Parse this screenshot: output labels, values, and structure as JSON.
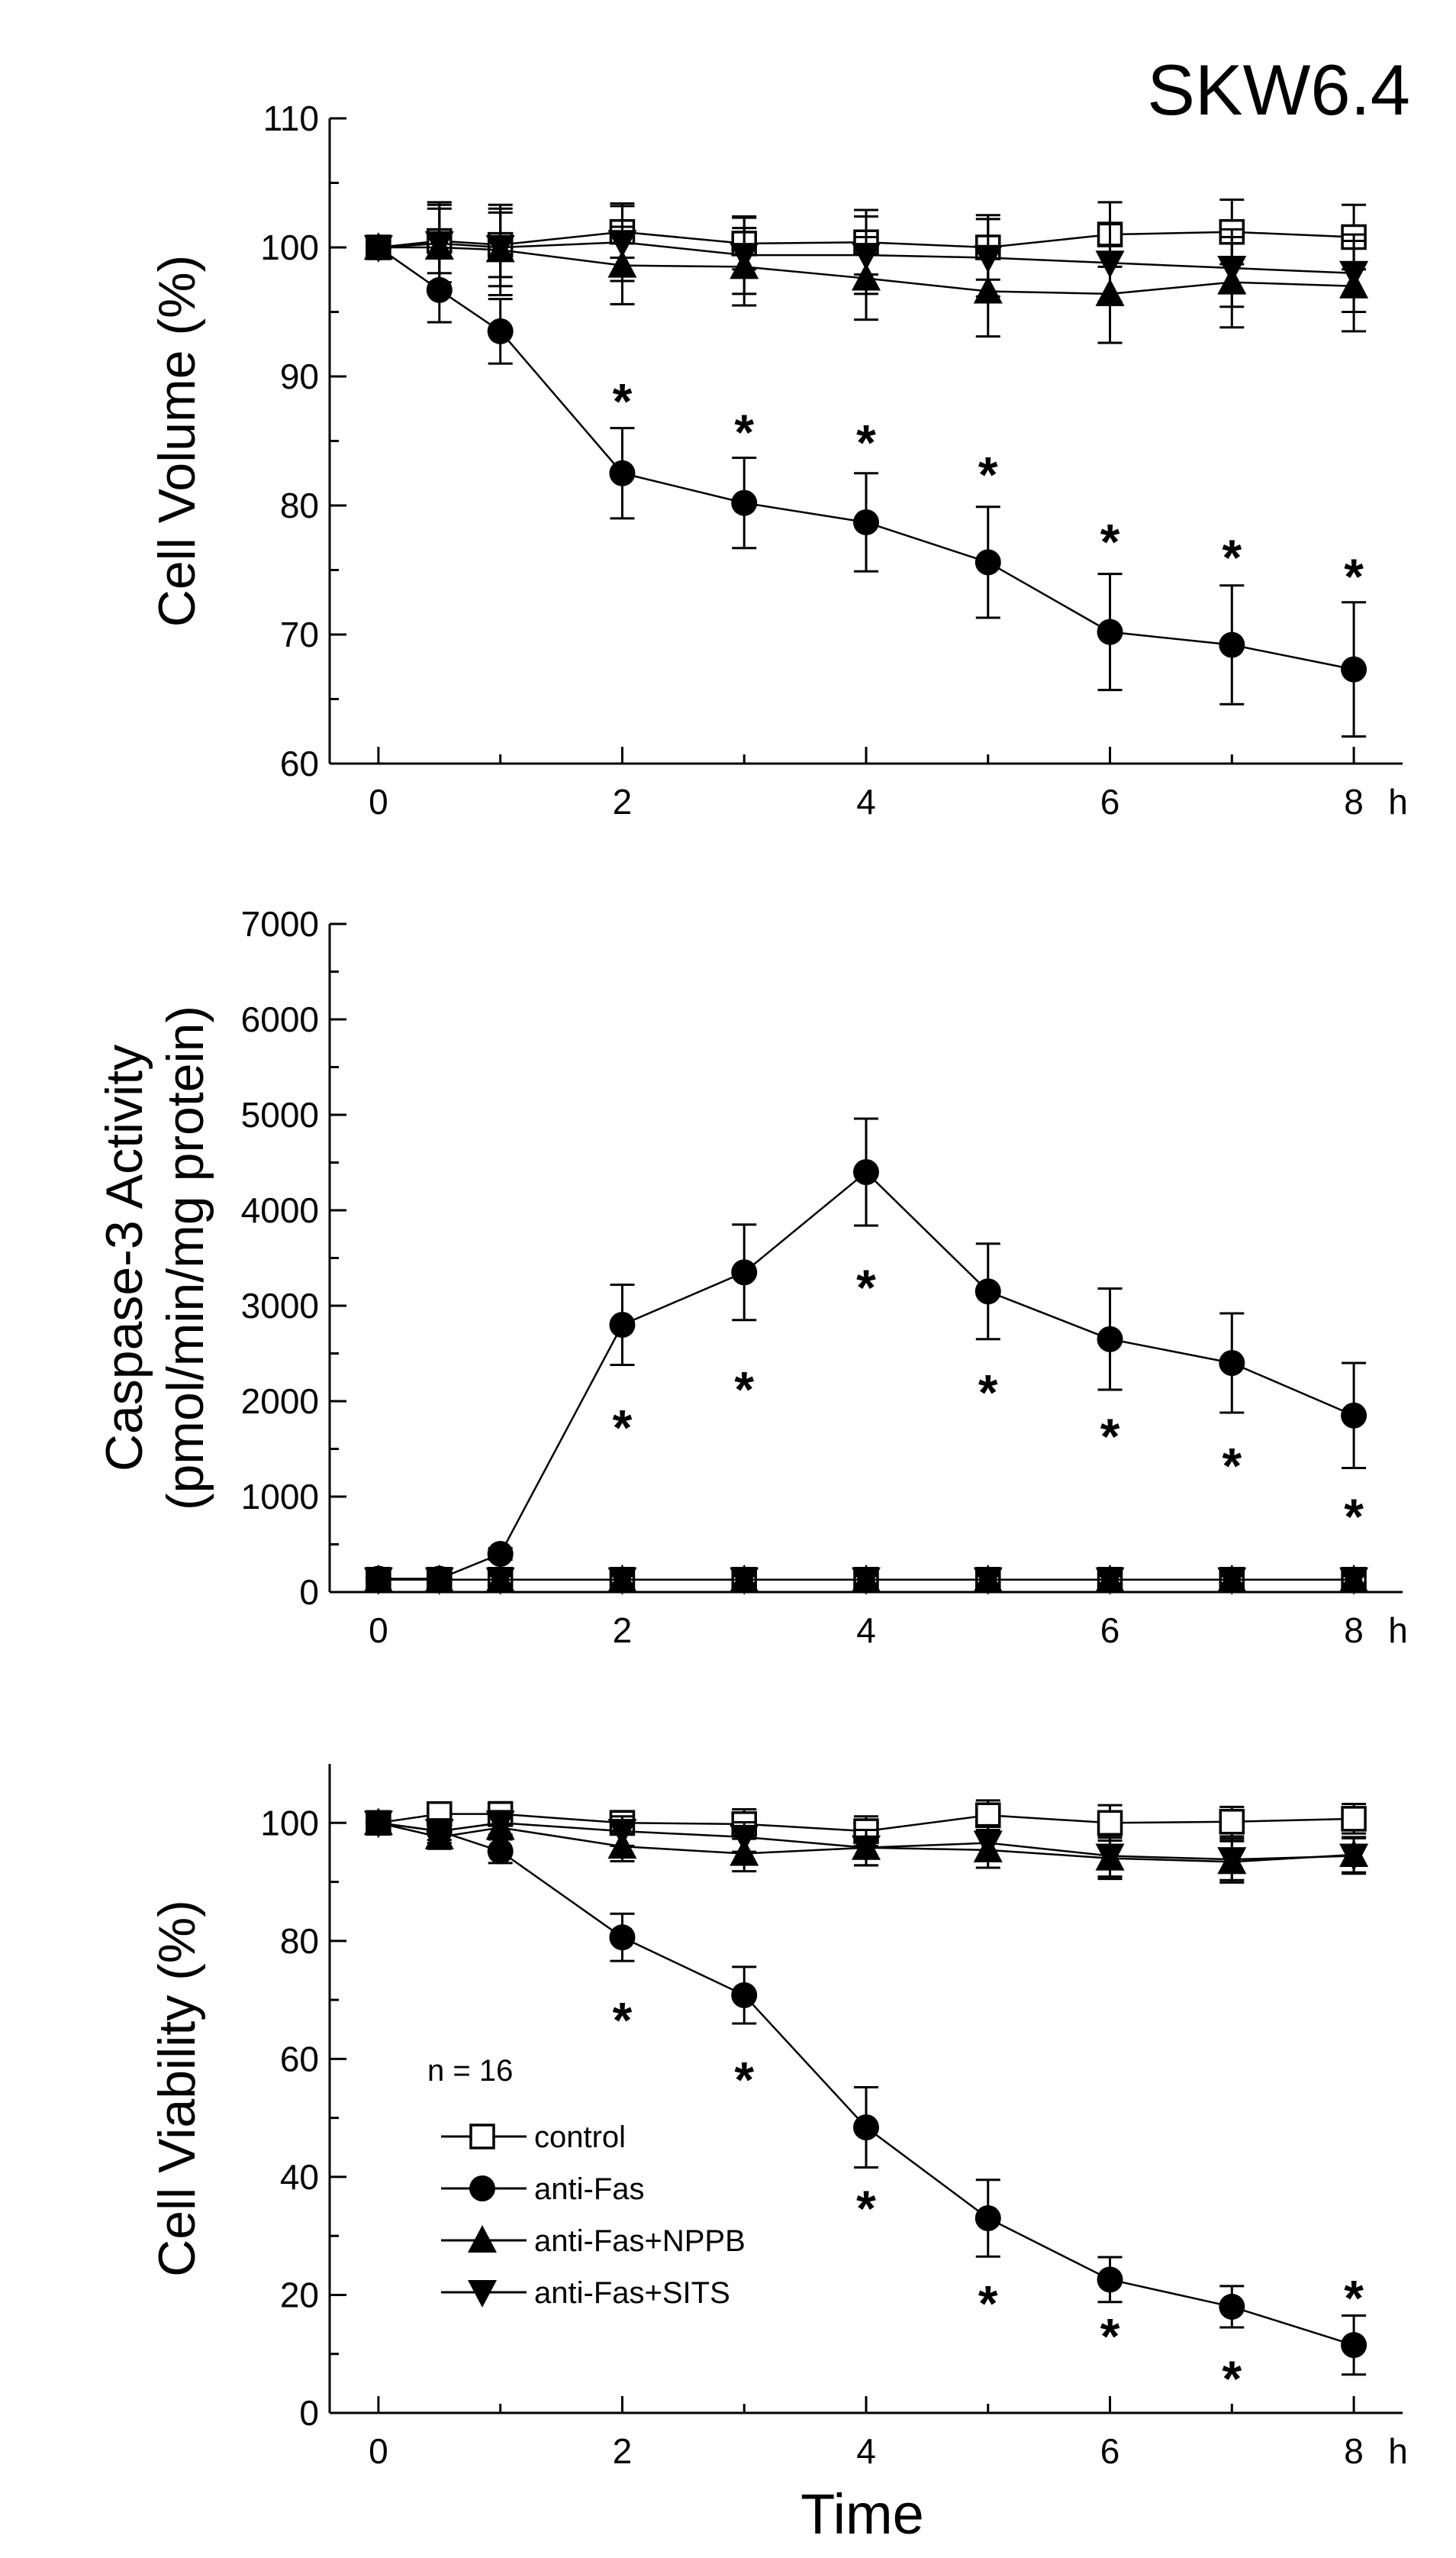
{
  "figure": {
    "title": "SKW6.4",
    "xlabel": "Time",
    "n_label": "n = 16"
  },
  "legend": [
    {
      "name": "control",
      "marker": "square-open"
    },
    {
      "name": "anti-Fas",
      "marker": "circle-filled"
    },
    {
      "name": "anti-Fas+NPPB",
      "marker": "triangle-up-filled"
    },
    {
      "name": "anti-Fas+SITS",
      "marker": "triangle-down-filled"
    }
  ],
  "chart_data": [
    {
      "type": "line",
      "id": "volume",
      "ylabel": "Cell Volume (%)",
      "ylabel_lines": [
        "Cell Volume (%)"
      ],
      "x": [
        0,
        0.5,
        1,
        2,
        3,
        4,
        5,
        6,
        7,
        8
      ],
      "xlim": [
        -0.4,
        8.4
      ],
      "xticks": [
        0,
        2,
        4,
        6,
        8
      ],
      "x_unit_label": "h",
      "ylim": [
        60,
        110
      ],
      "yticks": [
        60,
        70,
        80,
        90,
        100,
        110
      ],
      "series": [
        {
          "name": "control",
          "marker": "square-open",
          "values": [
            100,
            100.5,
            100.2,
            101.2,
            100.3,
            100.4,
            100.0,
            101.0,
            101.2,
            100.8
          ],
          "errors": [
            0.5,
            2.5,
            2.5,
            2.0,
            2.0,
            2.5,
            2.5,
            2.5,
            2.5,
            2.5
          ]
        },
        {
          "name": "anti-Fas",
          "marker": "circle-filled",
          "values": [
            100,
            96.7,
            93.5,
            82.5,
            80.2,
            78.7,
            75.6,
            70.2,
            69.2,
            67.3
          ],
          "errors": [
            0.5,
            2.5,
            2.5,
            3.5,
            3.5,
            3.8,
            4.3,
            4.5,
            4.6,
            5.2
          ]
        },
        {
          "name": "anti-Fas+NPPB",
          "marker": "triangle-up-filled",
          "values": [
            100,
            100.0,
            99.8,
            98.6,
            98.5,
            97.6,
            96.6,
            96.4,
            97.3,
            97.0
          ],
          "errors": [
            0.5,
            3.5,
            3.5,
            3.0,
            3.0,
            3.2,
            3.5,
            3.8,
            3.5,
            3.5
          ]
        },
        {
          "name": "anti-Fas+SITS",
          "marker": "triangle-down-filled",
          "values": [
            100,
            100.3,
            100.0,
            100.4,
            99.4,
            99.4,
            99.2,
            98.8,
            98.4,
            98.0
          ],
          "errors": [
            0.5,
            3.0,
            3.0,
            3.0,
            3.0,
            3.0,
            3.0,
            3.0,
            3.0,
            3.0
          ]
        }
      ],
      "significance": [
        {
          "x": 2,
          "y": 88.5
        },
        {
          "x": 3,
          "y": 86.1
        },
        {
          "x": 4,
          "y": 85.3
        },
        {
          "x": 5,
          "y": 82.8
        },
        {
          "x": 6,
          "y": 77.6
        },
        {
          "x": 7,
          "y": 76.4
        },
        {
          "x": 8,
          "y": 74.9
        }
      ]
    },
    {
      "type": "line",
      "id": "caspase",
      "ylabel": "Caspase-3 Activity (pmol/min/mg protein)",
      "ylabel_lines": [
        "Caspase-3 Activity",
        "(pmol/min/mg protein)"
      ],
      "x": [
        0,
        0.5,
        1,
        2,
        3,
        4,
        5,
        6,
        7,
        8
      ],
      "xlim": [
        -0.4,
        8.4
      ],
      "xticks": [
        0,
        2,
        4,
        6,
        8
      ],
      "x_unit_label": "h",
      "ylim": [
        0,
        7000
      ],
      "yticks": [
        0,
        1000,
        2000,
        3000,
        4000,
        5000,
        6000,
        7000
      ],
      "series": [
        {
          "name": "control",
          "marker": "square-open",
          "values": [
            130,
            130,
            130,
            130,
            130,
            130,
            130,
            130,
            130,
            130
          ],
          "errors": [
            40,
            40,
            40,
            40,
            40,
            40,
            40,
            40,
            40,
            40
          ]
        },
        {
          "name": "anti-Fas",
          "marker": "circle-filled",
          "values": [
            140,
            140,
            400,
            2800,
            3350,
            4400,
            3150,
            2650,
            2400,
            1850
          ],
          "errors": [
            30,
            30,
            60,
            420,
            500,
            560,
            500,
            530,
            520,
            550
          ]
        },
        {
          "name": "anti-Fas+NPPB",
          "marker": "triangle-up-filled",
          "values": [
            130,
            130,
            130,
            130,
            130,
            130,
            130,
            130,
            130,
            130
          ],
          "errors": [
            40,
            40,
            40,
            40,
            40,
            40,
            40,
            40,
            40,
            40
          ]
        },
        {
          "name": "anti-Fas+SITS",
          "marker": "triangle-down-filled",
          "values": [
            130,
            130,
            130,
            130,
            130,
            130,
            130,
            130,
            130,
            130
          ],
          "errors": [
            40,
            40,
            40,
            40,
            40,
            40,
            40,
            40,
            40,
            40
          ]
        }
      ],
      "significance": [
        {
          "x": 2,
          "y": 1780
        },
        {
          "x": 3,
          "y": 2180
        },
        {
          "x": 4,
          "y": 3250
        },
        {
          "x": 5,
          "y": 2150
        },
        {
          "x": 6,
          "y": 1690
        },
        {
          "x": 7,
          "y": 1380
        },
        {
          "x": 8,
          "y": 850
        }
      ]
    },
    {
      "type": "line",
      "id": "viability",
      "ylabel": "Cell Viability (%)",
      "ylabel_lines": [
        "Cell Viability (%)"
      ],
      "x": [
        0,
        0.5,
        1,
        2,
        3,
        4,
        5,
        6,
        7,
        8
      ],
      "xlim": [
        -0.4,
        8.4
      ],
      "xticks": [
        0,
        2,
        4,
        6,
        8
      ],
      "x_unit_label": "h",
      "ylim": [
        0,
        110
      ],
      "yticks": [
        0,
        20,
        40,
        60,
        80,
        100
      ],
      "series": [
        {
          "name": "control",
          "marker": "square-open",
          "values": [
            100,
            101.5,
            101.5,
            100.0,
            99.8,
            98.6,
            101.3,
            100.0,
            100.2,
            100.7
          ],
          "errors": [
            1.0,
            1.5,
            2.0,
            2.0,
            2.5,
            2.5,
            2.5,
            3.0,
            2.5,
            2.5
          ]
        },
        {
          "name": "anti-Fas",
          "marker": "circle-filled",
          "values": [
            100,
            98.6,
            95.2,
            80.6,
            70.8,
            48.4,
            33.0,
            22.6,
            18.0,
            11.5
          ],
          "errors": [
            1.0,
            1.5,
            2.0,
            4.0,
            4.8,
            6.8,
            6.5,
            3.8,
            3.5,
            5.0
          ]
        },
        {
          "name": "anti-Fas+NPPB",
          "marker": "triangle-up-filled",
          "values": [
            100,
            97.6,
            99.2,
            96.0,
            94.8,
            95.8,
            95.4,
            94.0,
            93.4,
            94.6
          ],
          "errors": [
            1.0,
            2.0,
            2.0,
            2.5,
            3.0,
            3.0,
            3.0,
            3.5,
            3.5,
            3.0
          ]
        },
        {
          "name": "anti-Fas+SITS",
          "marker": "triangle-down-filled",
          "values": [
            100,
            98.6,
            100.0,
            98.6,
            97.6,
            95.8,
            96.6,
            94.4,
            93.8,
            94.4
          ],
          "errors": [
            1.0,
            2.0,
            2.0,
            2.5,
            2.5,
            3.0,
            3.0,
            3.5,
            3.5,
            3.0
          ]
        }
      ],
      "significance": [
        {
          "x": 2,
          "y": 67.5
        },
        {
          "x": 3,
          "y": 57.4
        },
        {
          "x": 4,
          "y": 35.6
        },
        {
          "x": 5,
          "y": 19.5
        },
        {
          "x": 6,
          "y": 13.9
        },
        {
          "x": 7,
          "y": 6.7
        },
        {
          "x": 8,
          "y": 20.4
        }
      ]
    }
  ]
}
